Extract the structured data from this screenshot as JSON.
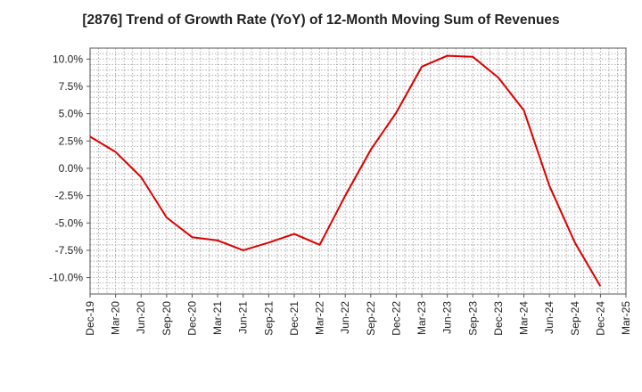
{
  "chart_data": {
    "type": "line",
    "title": "[2876]  Trend of Growth Rate (YoY) of 12-Month Moving Sum of Revenues",
    "xlabel": "",
    "ylabel": "",
    "ylim": [
      -11.5,
      11.0
    ],
    "y_ticks": [
      "10.0%",
      "7.5%",
      "5.0%",
      "2.5%",
      "0.0%",
      "-2.5%",
      "-5.0%",
      "-7.5%",
      "-10.0%"
    ],
    "y_tick_values": [
      10,
      7.5,
      5,
      2.5,
      0,
      -2.5,
      -5,
      -7.5,
      -10
    ],
    "x_ticks": [
      "Dec-19",
      "Mar-20",
      "Jun-20",
      "Sep-20",
      "Dec-20",
      "Mar-21",
      "Jun-21",
      "Sep-21",
      "Dec-21",
      "Mar-22",
      "Jun-22",
      "Sep-22",
      "Dec-22",
      "Mar-23",
      "Jun-23",
      "Sep-23",
      "Dec-23",
      "Mar-24",
      "Jun-24",
      "Sep-24",
      "Dec-24",
      "Mar-25"
    ],
    "grid": true,
    "series": [
      {
        "color": "#dd0000",
        "x": [
          "Dec-19",
          "Mar-20",
          "Jun-20",
          "Sep-20",
          "Dec-20",
          "Mar-21",
          "Jun-21",
          "Sep-21",
          "Dec-21",
          "Mar-22",
          "Jun-22",
          "Sep-22",
          "Dec-22",
          "Mar-23",
          "Jun-23",
          "Sep-23",
          "Dec-23",
          "Mar-24",
          "Jun-24",
          "Sep-24",
          "Dec-24"
        ],
        "values": [
          2.9,
          1.5,
          -0.8,
          -4.5,
          -6.3,
          -6.6,
          -7.5,
          -6.8,
          -6.0,
          -7.0,
          -2.5,
          1.7,
          5.1,
          9.3,
          10.3,
          10.2,
          8.3,
          5.3,
          -1.6,
          -6.8,
          -10.8
        ]
      }
    ]
  }
}
